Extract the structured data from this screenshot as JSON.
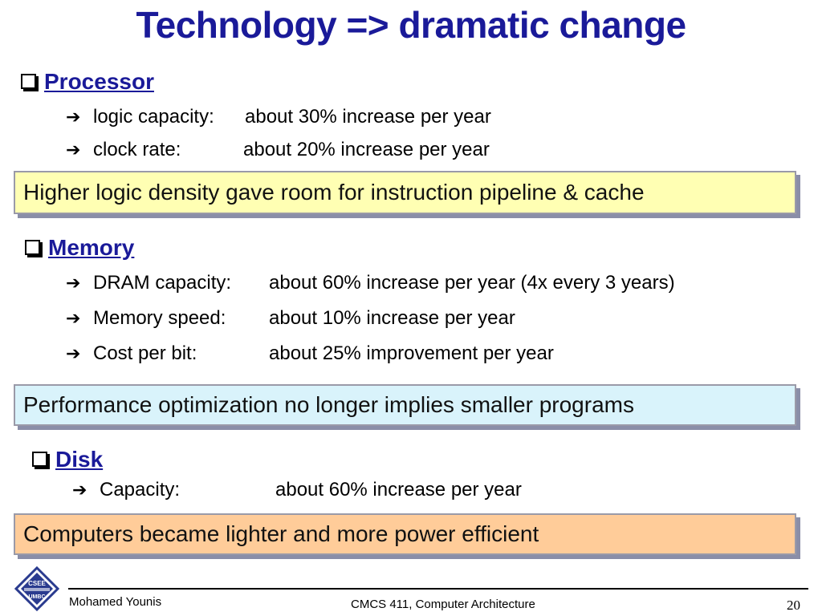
{
  "title": "Technology => dramatic change",
  "icons": {
    "section_bullet": "checkbox-square-icon",
    "bullet": "right-arrow-icon",
    "logo": "cse-umbc-logo"
  },
  "colors": {
    "title": "#1a1a99",
    "callout_processor": "#ffffb3",
    "callout_memory": "#d9f3fb",
    "callout_disk": "#ffcc99"
  },
  "sections": [
    {
      "label": "Processor",
      "bullets": [
        {
          "key": "logic capacity:",
          "value": "about 30% increase per year"
        },
        {
          "key": "clock rate:",
          "value": "about 20% increase per year"
        }
      ],
      "callout": "Higher logic density gave room for instruction pipeline & cache"
    },
    {
      "label": "Memory",
      "bullets": [
        {
          "key": "DRAM capacity:",
          "value": "about 60% increase per year (4x every 3 years)"
        },
        {
          "key": "Memory speed:",
          "value": "about 10% increase per year"
        },
        {
          "key": "Cost per bit:",
          "value": "about 25% improvement per year"
        }
      ],
      "callout": "Performance optimization no longer implies smaller programs"
    },
    {
      "label": "Disk",
      "bullets": [
        {
          "key": "Capacity:",
          "value": "about 60% increase per year"
        }
      ],
      "callout": "Computers became lighter and more power efficient"
    }
  ],
  "footer": {
    "author": "Mohamed Younis",
    "course": "CMCS 411, Computer Architecture",
    "page": "20",
    "logo_text_top": "CSEE",
    "logo_text_bottom": "UMBC"
  }
}
